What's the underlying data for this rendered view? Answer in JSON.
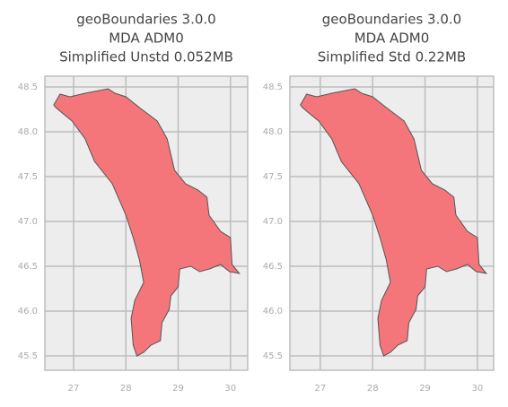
{
  "chart_data": [
    {
      "type": "map",
      "title": [
        "geoBoundaries 3.0.0",
        "MDA ADM0",
        "Simplified Unstd 0.052MB"
      ],
      "xlim": [
        26.45,
        30.33
      ],
      "ylim": [
        45.34,
        48.62
      ],
      "xticks": [
        27,
        28,
        29,
        30
      ],
      "yticks": [
        {
          "value": 45.5,
          "label": "45.5"
        },
        {
          "value": 46,
          "label": "46.0"
        },
        {
          "value": 46.5,
          "label": "46.5"
        },
        {
          "value": 47,
          "label": "47.0"
        },
        {
          "value": 47.5,
          "label": "47.5"
        },
        {
          "value": 48,
          "label": "48.0"
        },
        {
          "value": 48.5,
          "label": "48.5"
        }
      ],
      "grid": true,
      "color": "#f4767a",
      "boundary": [
        [
          26.62,
          48.3
        ],
        [
          26.74,
          48.42
        ],
        [
          26.93,
          48.39
        ],
        [
          27.22,
          48.43
        ],
        [
          27.66,
          48.48
        ],
        [
          27.79,
          48.43
        ],
        [
          28.0,
          48.39
        ],
        [
          28.26,
          48.27
        ],
        [
          28.6,
          48.12
        ],
        [
          28.79,
          47.92
        ],
        [
          28.93,
          47.57
        ],
        [
          29.14,
          47.42
        ],
        [
          29.38,
          47.35
        ],
        [
          29.55,
          47.27
        ],
        [
          29.59,
          47.07
        ],
        [
          29.81,
          46.89
        ],
        [
          30.0,
          46.82
        ],
        [
          30.03,
          46.52
        ],
        [
          30.17,
          46.42
        ],
        [
          29.98,
          46.44
        ],
        [
          29.81,
          46.52
        ],
        [
          29.6,
          46.47
        ],
        [
          29.41,
          46.44
        ],
        [
          29.24,
          46.5
        ],
        [
          29.03,
          46.47
        ],
        [
          29.0,
          46.27
        ],
        [
          28.86,
          46.17
        ],
        [
          28.83,
          46.02
        ],
        [
          28.69,
          45.87
        ],
        [
          28.66,
          45.67
        ],
        [
          28.48,
          45.62
        ],
        [
          28.34,
          45.54
        ],
        [
          28.21,
          45.5
        ],
        [
          28.14,
          45.62
        ],
        [
          28.1,
          45.92
        ],
        [
          28.17,
          46.12
        ],
        [
          28.34,
          46.32
        ],
        [
          28.26,
          46.57
        ],
        [
          28.14,
          46.82
        ],
        [
          28.0,
          47.07
        ],
        [
          27.74,
          47.42
        ],
        [
          27.4,
          47.67
        ],
        [
          27.22,
          47.92
        ],
        [
          26.97,
          48.12
        ],
        [
          26.76,
          48.22
        ],
        [
          26.66,
          48.27
        ]
      ]
    },
    {
      "type": "map",
      "title": [
        "geoBoundaries 3.0.0",
        "MDA ADM0",
        "Simplified Std 0.22MB"
      ],
      "xlim": [
        26.42,
        30.31
      ],
      "ylim": [
        45.34,
        48.62
      ],
      "xticks": [
        27,
        28,
        29,
        30
      ],
      "yticks": [
        {
          "value": 45.5,
          "label": "45.5"
        },
        {
          "value": 46,
          "label": "46.0"
        },
        {
          "value": 46.5,
          "label": "46.5"
        },
        {
          "value": 47,
          "label": "47.0"
        },
        {
          "value": 47.5,
          "label": "47.5"
        },
        {
          "value": 48,
          "label": "48.0"
        },
        {
          "value": 48.5,
          "label": "48.5"
        }
      ],
      "grid": true,
      "color": "#f4767a",
      "boundary": [
        [
          26.62,
          48.3
        ],
        [
          26.74,
          48.42
        ],
        [
          26.93,
          48.39
        ],
        [
          27.22,
          48.43
        ],
        [
          27.66,
          48.48
        ],
        [
          27.79,
          48.43
        ],
        [
          28.0,
          48.39
        ],
        [
          28.26,
          48.27
        ],
        [
          28.6,
          48.12
        ],
        [
          28.79,
          47.92
        ],
        [
          28.93,
          47.57
        ],
        [
          29.14,
          47.42
        ],
        [
          29.38,
          47.35
        ],
        [
          29.55,
          47.27
        ],
        [
          29.59,
          47.07
        ],
        [
          29.81,
          46.89
        ],
        [
          30.0,
          46.82
        ],
        [
          30.03,
          46.52
        ],
        [
          30.17,
          46.42
        ],
        [
          29.98,
          46.44
        ],
        [
          29.81,
          46.52
        ],
        [
          29.6,
          46.47
        ],
        [
          29.41,
          46.44
        ],
        [
          29.24,
          46.5
        ],
        [
          29.03,
          46.47
        ],
        [
          29.0,
          46.27
        ],
        [
          28.86,
          46.17
        ],
        [
          28.83,
          46.02
        ],
        [
          28.69,
          45.87
        ],
        [
          28.66,
          45.67
        ],
        [
          28.48,
          45.62
        ],
        [
          28.34,
          45.54
        ],
        [
          28.21,
          45.5
        ],
        [
          28.14,
          45.62
        ],
        [
          28.1,
          45.92
        ],
        [
          28.17,
          46.12
        ],
        [
          28.34,
          46.32
        ],
        [
          28.26,
          46.57
        ],
        [
          28.14,
          46.82
        ],
        [
          28.0,
          47.07
        ],
        [
          27.74,
          47.42
        ],
        [
          27.4,
          47.67
        ],
        [
          27.22,
          47.92
        ],
        [
          26.97,
          48.12
        ],
        [
          26.76,
          48.22
        ],
        [
          26.66,
          48.27
        ]
      ]
    }
  ]
}
